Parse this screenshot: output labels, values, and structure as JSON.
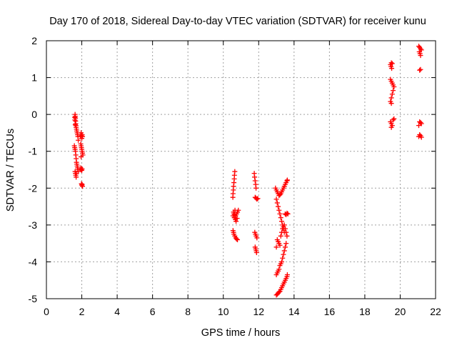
{
  "chart_data": {
    "type": "scatter",
    "title": "Day 170 of 2018, Sidereal Day-to-day VTEC variation (SDTVAR) for receiver kunu",
    "xlabel": "GPS time / hours",
    "ylabel": "SDTVAR / TECUs",
    "xlim": [
      0,
      22
    ],
    "ylim": [
      -5,
      2
    ],
    "xticks": [
      0,
      2,
      4,
      6,
      8,
      10,
      12,
      14,
      16,
      18,
      20,
      22
    ],
    "yticks": [
      -5,
      -4,
      -3,
      -2,
      -1,
      0,
      1,
      2
    ],
    "grid": true,
    "marker": "plus",
    "color": "#ff0000",
    "points": [
      [
        1.62,
        0.0
      ],
      [
        1.63,
        -0.05
      ],
      [
        1.64,
        -0.1
      ],
      [
        1.65,
        -0.18
      ],
      [
        1.66,
        -0.25
      ],
      [
        1.67,
        -0.3
      ],
      [
        1.68,
        -0.35
      ],
      [
        1.7,
        -0.4
      ],
      [
        1.72,
        -0.45
      ],
      [
        1.74,
        -0.5
      ],
      [
        1.76,
        -0.55
      ],
      [
        1.78,
        -0.6
      ],
      [
        1.8,
        -0.7
      ],
      [
        1.6,
        -0.08
      ],
      [
        1.61,
        -0.15
      ],
      [
        1.63,
        -0.28
      ],
      [
        1.58,
        -0.85
      ],
      [
        1.6,
        -0.9
      ],
      [
        1.62,
        -0.95
      ],
      [
        1.64,
        -1.0
      ],
      [
        1.66,
        -1.1
      ],
      [
        1.68,
        -1.2
      ],
      [
        1.7,
        -1.3
      ],
      [
        1.72,
        -1.35
      ],
      [
        1.74,
        -1.4
      ],
      [
        1.76,
        -1.45
      ],
      [
        1.78,
        -1.5
      ],
      [
        1.8,
        -1.55
      ],
      [
        1.62,
        -1.55
      ],
      [
        1.64,
        -1.6
      ],
      [
        1.66,
        -1.65
      ],
      [
        1.68,
        -1.7
      ],
      [
        1.7,
        -1.6
      ],
      [
        1.92,
        -0.6
      ],
      [
        1.94,
        -0.55
      ],
      [
        1.96,
        -0.5
      ],
      [
        1.98,
        -0.58
      ],
      [
        2.0,
        -0.65
      ],
      [
        2.02,
        -0.55
      ],
      [
        2.04,
        -0.6
      ],
      [
        1.94,
        -0.8
      ],
      [
        1.96,
        -0.85
      ],
      [
        1.98,
        -0.9
      ],
      [
        2.0,
        -0.95
      ],
      [
        2.02,
        -1.0
      ],
      [
        2.04,
        -1.05
      ],
      [
        2.06,
        -1.1
      ],
      [
        1.96,
        -1.15
      ],
      [
        1.94,
        -1.45
      ],
      [
        1.96,
        -1.5
      ],
      [
        1.98,
        -1.48
      ],
      [
        2.0,
        -1.52
      ],
      [
        2.02,
        -1.48
      ],
      [
        1.98,
        -1.88
      ],
      [
        2.0,
        -1.92
      ],
      [
        2.02,
        -1.9
      ],
      [
        2.04,
        -1.95
      ],
      [
        10.65,
        -1.55
      ],
      [
        10.63,
        -1.65
      ],
      [
        10.62,
        -1.75
      ],
      [
        10.6,
        -1.85
      ],
      [
        10.58,
        -1.95
      ],
      [
        10.57,
        -2.05
      ],
      [
        10.55,
        -2.15
      ],
      [
        10.54,
        -2.25
      ],
      [
        10.55,
        -2.75
      ],
      [
        10.6,
        -2.7
      ],
      [
        10.65,
        -2.72
      ],
      [
        10.7,
        -2.75
      ],
      [
        10.75,
        -2.7
      ],
      [
        10.8,
        -2.65
      ],
      [
        10.85,
        -2.6
      ],
      [
        10.62,
        -2.8
      ],
      [
        10.68,
        -2.85
      ],
      [
        10.72,
        -2.9
      ],
      [
        10.78,
        -2.82
      ],
      [
        10.58,
        -2.65
      ],
      [
        10.66,
        -2.6
      ],
      [
        10.55,
        -3.15
      ],
      [
        10.58,
        -3.2
      ],
      [
        10.6,
        -3.25
      ],
      [
        10.65,
        -3.3
      ],
      [
        10.7,
        -3.35
      ],
      [
        10.75,
        -3.38
      ],
      [
        10.8,
        -3.4
      ],
      [
        11.75,
        -1.6
      ],
      [
        11.77,
        -1.7
      ],
      [
        11.8,
        -1.8
      ],
      [
        11.83,
        -1.9
      ],
      [
        11.85,
        -2.0
      ],
      [
        11.8,
        -2.25
      ],
      [
        11.85,
        -2.27
      ],
      [
        11.9,
        -2.3
      ],
      [
        11.95,
        -2.28
      ],
      [
        11.78,
        -3.2
      ],
      [
        11.82,
        -3.25
      ],
      [
        11.86,
        -3.3
      ],
      [
        11.9,
        -3.35
      ],
      [
        11.8,
        -3.6
      ],
      [
        11.83,
        -3.65
      ],
      [
        11.86,
        -3.7
      ],
      [
        11.88,
        -3.75
      ],
      [
        12.95,
        -2.0
      ],
      [
        13.0,
        -2.05
      ],
      [
        13.05,
        -2.1
      ],
      [
        13.1,
        -2.15
      ],
      [
        13.15,
        -2.2
      ],
      [
        13.2,
        -2.18
      ],
      [
        13.25,
        -2.15
      ],
      [
        13.3,
        -2.1
      ],
      [
        13.35,
        -2.05
      ],
      [
        13.4,
        -2.0
      ],
      [
        13.45,
        -1.95
      ],
      [
        13.5,
        -1.9
      ],
      [
        13.55,
        -1.85
      ],
      [
        13.6,
        -1.8
      ],
      [
        13.62,
        -1.78
      ],
      [
        13.0,
        -2.3
      ],
      [
        13.05,
        -2.4
      ],
      [
        13.1,
        -2.5
      ],
      [
        13.15,
        -2.6
      ],
      [
        13.2,
        -2.7
      ],
      [
        13.25,
        -2.8
      ],
      [
        13.3,
        -2.9
      ],
      [
        13.35,
        -3.0
      ],
      [
        13.4,
        -3.1
      ],
      [
        13.45,
        -3.2
      ],
      [
        13.5,
        -2.7
      ],
      [
        13.55,
        -2.72
      ],
      [
        13.6,
        -2.68
      ],
      [
        13.65,
        -2.7
      ],
      [
        13.05,
        -3.4
      ],
      [
        13.1,
        -3.45
      ],
      [
        13.15,
        -3.5
      ],
      [
        13.2,
        -3.55
      ],
      [
        13.0,
        -3.6
      ],
      [
        13.25,
        -3.3
      ],
      [
        13.3,
        -3.2
      ],
      [
        13.35,
        -3.1
      ],
      [
        13.4,
        -3.05
      ],
      [
        13.45,
        -3.0
      ],
      [
        13.5,
        -3.1
      ],
      [
        13.55,
        -3.2
      ],
      [
        13.6,
        -3.3
      ],
      [
        13.55,
        -3.5
      ],
      [
        13.5,
        -3.6
      ],
      [
        13.45,
        -3.7
      ],
      [
        13.4,
        -3.8
      ],
      [
        13.35,
        -3.9
      ],
      [
        13.3,
        -4.0
      ],
      [
        13.25,
        -4.05
      ],
      [
        13.2,
        -4.1
      ],
      [
        13.15,
        -4.2
      ],
      [
        13.1,
        -4.25
      ],
      [
        13.05,
        -4.3
      ],
      [
        13.0,
        -4.35
      ],
      [
        13.0,
        -4.9
      ],
      [
        13.05,
        -4.88
      ],
      [
        13.1,
        -4.85
      ],
      [
        13.15,
        -4.82
      ],
      [
        13.2,
        -4.8
      ],
      [
        13.25,
        -4.75
      ],
      [
        13.3,
        -4.7
      ],
      [
        13.35,
        -4.65
      ],
      [
        13.4,
        -4.6
      ],
      [
        13.45,
        -4.55
      ],
      [
        13.5,
        -4.5
      ],
      [
        13.55,
        -4.45
      ],
      [
        13.6,
        -4.4
      ],
      [
        13.62,
        -4.35
      ],
      [
        19.45,
        1.35
      ],
      [
        19.5,
        1.4
      ],
      [
        19.55,
        1.38
      ],
      [
        19.48,
        1.3
      ],
      [
        19.52,
        1.25
      ],
      [
        19.45,
        0.95
      ],
      [
        19.5,
        0.9
      ],
      [
        19.55,
        0.85
      ],
      [
        19.6,
        0.8
      ],
      [
        19.65,
        0.75
      ],
      [
        19.6,
        0.65
      ],
      [
        19.55,
        0.55
      ],
      [
        19.5,
        0.45
      ],
      [
        19.45,
        0.35
      ],
      [
        19.5,
        0.3
      ],
      [
        19.45,
        -0.2
      ],
      [
        19.5,
        -0.25
      ],
      [
        19.55,
        -0.3
      ],
      [
        19.6,
        -0.15
      ],
      [
        19.65,
        -0.12
      ],
      [
        19.5,
        -0.35
      ],
      [
        21.05,
        1.85
      ],
      [
        21.1,
        1.82
      ],
      [
        21.15,
        1.78
      ],
      [
        21.08,
        1.7
      ],
      [
        21.12,
        1.65
      ],
      [
        21.15,
        1.6
      ],
      [
        21.2,
        1.75
      ],
      [
        21.1,
        1.2
      ],
      [
        21.15,
        1.22
      ],
      [
        21.1,
        -0.2
      ],
      [
        21.15,
        -0.22
      ],
      [
        21.2,
        -0.25
      ],
      [
        21.05,
        -0.3
      ],
      [
        21.1,
        -0.55
      ],
      [
        21.15,
        -0.58
      ],
      [
        21.2,
        -0.62
      ],
      [
        21.05,
        -0.6
      ]
    ]
  }
}
